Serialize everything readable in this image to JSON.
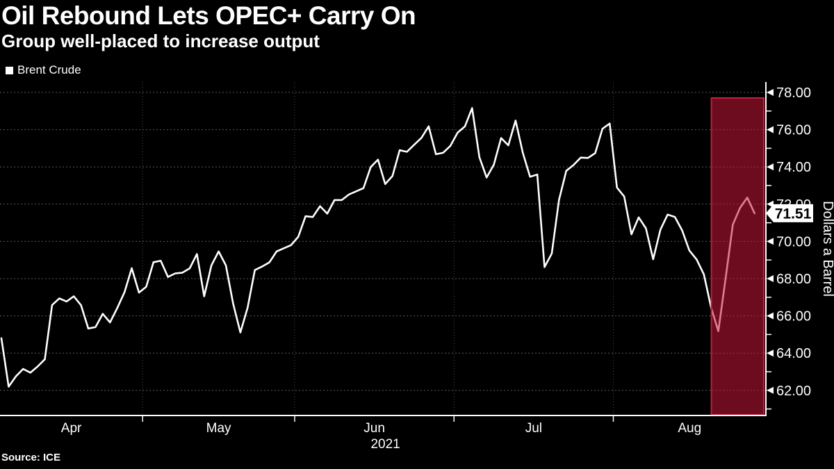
{
  "colors": {
    "background": "#000000",
    "line": "#ffffff",
    "grid": "#6e6e6e",
    "axis": "#ffffff",
    "highlight_fill": "rgba(201,22,56,0.55)",
    "highlight_border": "#c41f3c",
    "badge_bg": "#ffffff",
    "badge_text": "#000000",
    "text": "#ffffff"
  },
  "chart_data": {
    "type": "line",
    "title": "Oil Rebound Lets OPEC+ Carry On",
    "subtitle": "Group well-placed to increase output",
    "source": "Source: ICE",
    "legend": [
      "Brent Crude"
    ],
    "ylabel": "Dollars a Barrel",
    "year_label": "2021",
    "x_months": [
      "Apr",
      "May",
      "Jun",
      "Jul",
      "Aug"
    ],
    "month_point_counts": [
      20,
      21,
      22,
      22,
      20
    ],
    "y_ticks": [
      78,
      76,
      74,
      72,
      70,
      68,
      66,
      64,
      62
    ],
    "y_minor_ticks": [
      77,
      75,
      73,
      71,
      69,
      67,
      65,
      63,
      61
    ],
    "ylim": [
      60.6,
      78.6
    ],
    "grid": true,
    "legend_position": "top-left",
    "series": [
      {
        "name": "Brent Crude",
        "color": "#ffffff",
        "values": [
          64.8,
          62.2,
          62.75,
          63.15,
          62.95,
          63.28,
          63.67,
          66.58,
          66.94,
          66.77,
          67.05,
          66.57,
          65.32,
          65.4,
          66.11,
          65.65,
          66.42,
          67.27,
          68.56,
          67.25,
          67.56,
          68.88,
          68.96,
          68.09,
          68.28,
          68.32,
          68.55,
          69.32,
          67.05,
          68.71,
          69.46,
          68.71,
          66.66,
          65.11,
          66.44,
          68.46,
          68.65,
          68.87,
          69.46,
          69.63,
          69.8,
          70.25,
          71.35,
          71.31,
          71.89,
          71.49,
          72.22,
          72.22,
          72.52,
          72.69,
          72.86,
          73.99,
          74.39,
          73.08,
          73.51,
          74.9,
          74.81,
          75.19,
          75.56,
          76.18,
          74.68,
          74.76,
          75.13,
          75.84,
          76.17,
          77.16,
          74.53,
          73.43,
          74.12,
          75.55,
          75.16,
          76.49,
          74.76,
          73.47,
          73.59,
          68.62,
          69.35,
          72.23,
          73.79,
          74.1,
          74.5,
          74.48,
          74.74,
          76.05,
          76.33,
          72.89,
          72.41,
          70.38,
          71.29,
          70.7,
          69.04,
          70.63,
          71.44,
          71.31,
          70.59,
          69.51,
          69.03,
          68.23,
          66.45,
          65.18,
          68.0,
          70.9,
          71.8,
          72.35,
          71.51
        ]
      }
    ],
    "last_value": 71.51,
    "last_value_label": "71.51",
    "highlight_region": {
      "from_index": 99,
      "to_index": 104
    }
  }
}
